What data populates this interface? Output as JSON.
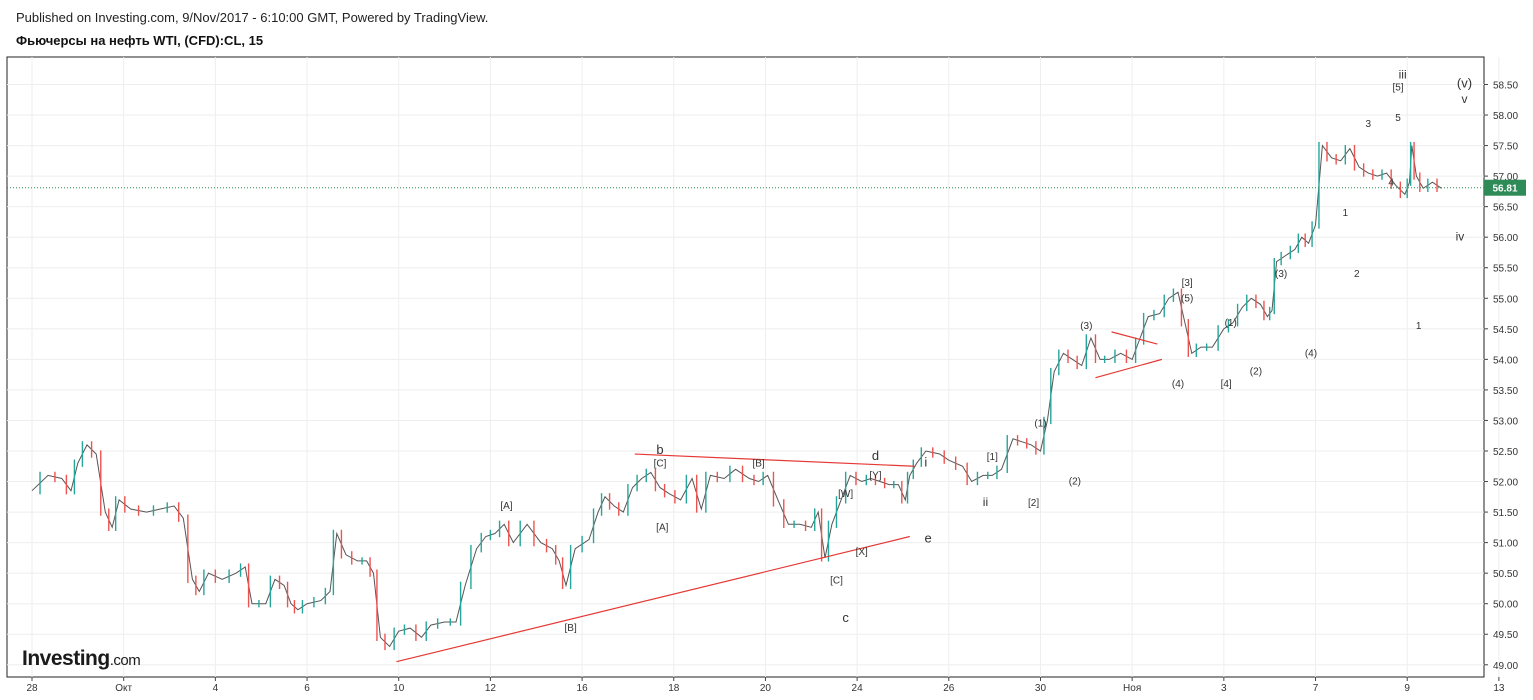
{
  "header": {
    "published": "Published on Investing.com, 9/Nov/2017 - 6:10:00 GMT, Powered by TradingView.",
    "title": "Фьючерсы на нефть WTI, (CFD):CL, 15"
  },
  "logo": {
    "brand": "Investing",
    "domain": ".com"
  },
  "chart_data": {
    "type": "line",
    "title": "Фьючерсы на нефть WTI, (CFD):CL, 15",
    "x_ticks": [
      "28",
      "Окт",
      "4",
      "6",
      "10",
      "12",
      "16",
      "18",
      "20",
      "24",
      "26",
      "30",
      "Ноя",
      "3",
      "7",
      "9",
      "13"
    ],
    "y_ticks": [
      "58.50",
      "58.00",
      "57.50",
      "57.00",
      "56.50",
      "56.00",
      "55.50",
      "55.00",
      "54.50",
      "54.00",
      "53.50",
      "53.00",
      "52.50",
      "52.00",
      "51.50",
      "51.00",
      "50.50",
      "50.00",
      "49.50",
      "49.00"
    ],
    "ylim": [
      48.8,
      58.95
    ],
    "last_price": "56.81",
    "grid": true,
    "colors": {
      "up": "#26a69a",
      "down": "#ef5350",
      "trendline": "#e53935",
      "last_price": "#2e8b57"
    },
    "series": [
      {
        "values": [
          [
            0.0,
            51.85
          ],
          [
            0.7,
            52.1
          ],
          [
            1.3,
            52.05
          ],
          [
            1.7,
            51.85
          ],
          [
            2.0,
            52.3
          ],
          [
            2.4,
            52.6
          ],
          [
            2.8,
            52.45
          ],
          [
            3.2,
            51.5
          ],
          [
            3.5,
            51.25
          ],
          [
            3.8,
            51.7
          ],
          [
            4.3,
            51.55
          ],
          [
            5.0,
            51.5
          ],
          [
            5.6,
            51.55
          ],
          [
            6.2,
            51.6
          ],
          [
            6.6,
            51.4
          ],
          [
            7.0,
            50.4
          ],
          [
            7.3,
            50.2
          ],
          [
            7.7,
            50.5
          ],
          [
            8.3,
            50.4
          ],
          [
            8.9,
            50.5
          ],
          [
            9.3,
            50.6
          ],
          [
            9.6,
            50.0
          ],
          [
            10.2,
            50.0
          ],
          [
            10.6,
            50.4
          ],
          [
            11.0,
            50.3
          ],
          [
            11.3,
            50.0
          ],
          [
            11.6,
            49.9
          ],
          [
            12.0,
            50.0
          ],
          [
            12.6,
            50.05
          ],
          [
            13.0,
            50.2
          ],
          [
            13.3,
            51.15
          ],
          [
            13.7,
            50.8
          ],
          [
            14.2,
            50.7
          ],
          [
            14.6,
            50.7
          ],
          [
            14.9,
            50.5
          ],
          [
            15.2,
            49.45
          ],
          [
            15.6,
            49.3
          ],
          [
            16.0,
            49.55
          ],
          [
            16.5,
            49.6
          ],
          [
            17.0,
            49.45
          ],
          [
            17.4,
            49.65
          ],
          [
            18.0,
            49.7
          ],
          [
            18.5,
            49.7
          ],
          [
            18.9,
            50.3
          ],
          [
            19.4,
            50.9
          ],
          [
            19.8,
            51.1
          ],
          [
            20.2,
            51.15
          ],
          [
            20.6,
            51.3
          ],
          [
            21.0,
            51.0
          ],
          [
            21.6,
            51.3
          ],
          [
            22.2,
            51.0
          ],
          [
            22.7,
            50.9
          ],
          [
            23.0,
            50.7
          ],
          [
            23.3,
            50.3
          ],
          [
            23.7,
            50.9
          ],
          [
            24.3,
            51.05
          ],
          [
            24.7,
            51.5
          ],
          [
            25.0,
            51.75
          ],
          [
            25.4,
            51.6
          ],
          [
            25.8,
            51.5
          ],
          [
            26.2,
            51.9
          ],
          [
            26.6,
            52.05
          ],
          [
            27.0,
            52.15
          ],
          [
            27.4,
            51.9
          ],
          [
            27.8,
            51.8
          ],
          [
            28.3,
            51.7
          ],
          [
            28.8,
            52.05
          ],
          [
            29.2,
            51.55
          ],
          [
            29.6,
            52.1
          ],
          [
            30.2,
            52.05
          ],
          [
            30.7,
            52.2
          ],
          [
            31.3,
            52.05
          ],
          [
            31.7,
            52.0
          ],
          [
            32.1,
            52.1
          ],
          [
            32.6,
            51.65
          ],
          [
            33.0,
            51.3
          ],
          [
            33.5,
            51.3
          ],
          [
            34.0,
            51.25
          ],
          [
            34.3,
            51.5
          ],
          [
            34.6,
            50.75
          ],
          [
            34.9,
            51.3
          ],
          [
            35.3,
            51.7
          ],
          [
            35.7,
            52.1
          ],
          [
            36.2,
            52.0
          ],
          [
            36.6,
            52.05
          ],
          [
            37.0,
            52.0
          ],
          [
            37.4,
            51.95
          ],
          [
            37.8,
            51.95
          ],
          [
            38.1,
            51.7
          ],
          [
            38.3,
            52.1
          ],
          [
            38.6,
            52.3
          ],
          [
            39.0,
            52.5
          ],
          [
            39.6,
            52.45
          ],
          [
            40.0,
            52.35
          ],
          [
            40.6,
            52.25
          ],
          [
            41.0,
            52.0
          ],
          [
            41.5,
            52.1
          ],
          [
            41.9,
            52.1
          ],
          [
            42.3,
            52.2
          ],
          [
            42.8,
            52.7
          ],
          [
            43.2,
            52.65
          ],
          [
            43.6,
            52.6
          ],
          [
            44.0,
            52.5
          ],
          [
            44.3,
            53.0
          ],
          [
            44.6,
            53.8
          ],
          [
            45.0,
            54.1
          ],
          [
            45.4,
            54.0
          ],
          [
            45.8,
            53.9
          ],
          [
            46.2,
            54.35
          ],
          [
            46.6,
            54.0
          ],
          [
            47.0,
            54.0
          ],
          [
            47.5,
            54.1
          ],
          [
            48.0,
            54.0
          ],
          [
            48.3,
            54.3
          ],
          [
            48.7,
            54.7
          ],
          [
            49.2,
            54.75
          ],
          [
            49.6,
            55.0
          ],
          [
            50.0,
            55.1
          ],
          [
            50.3,
            54.6
          ],
          [
            50.6,
            54.1
          ],
          [
            51.0,
            54.2
          ],
          [
            51.5,
            54.2
          ],
          [
            52.0,
            54.5
          ],
          [
            52.4,
            54.6
          ],
          [
            52.8,
            54.85
          ],
          [
            53.2,
            55.0
          ],
          [
            53.6,
            54.9
          ],
          [
            53.9,
            54.7
          ],
          [
            54.1,
            54.8
          ],
          [
            54.3,
            55.6
          ],
          [
            54.7,
            55.7
          ],
          [
            55.1,
            55.8
          ],
          [
            55.4,
            56.0
          ],
          [
            55.7,
            55.9
          ],
          [
            56.0,
            56.2
          ],
          [
            56.3,
            57.5
          ],
          [
            56.7,
            57.3
          ],
          [
            57.1,
            57.25
          ],
          [
            57.5,
            57.45
          ],
          [
            57.9,
            57.15
          ],
          [
            58.3,
            57.05
          ],
          [
            58.7,
            57.0
          ],
          [
            59.1,
            57.05
          ],
          [
            59.5,
            56.85
          ],
          [
            59.9,
            56.7
          ],
          [
            60.1,
            56.9
          ],
          [
            60.2,
            57.5
          ],
          [
            60.4,
            57.0
          ],
          [
            60.7,
            56.8
          ],
          [
            61.1,
            56.9
          ],
          [
            61.5,
            56.8
          ]
        ]
      }
    ],
    "lines": [
      {
        "from": [
          15.9,
          49.05
        ],
        "to": [
          38.3,
          51.1
        ]
      },
      {
        "from": [
          26.3,
          52.45
        ],
        "to": [
          38.5,
          52.25
        ]
      },
      {
        "from": [
          46.4,
          53.7
        ],
        "to": [
          49.3,
          54.0
        ]
      },
      {
        "from": [
          47.1,
          54.45
        ],
        "to": [
          49.1,
          54.25
        ]
      }
    ],
    "annotations": [
      {
        "text": "b",
        "x": 27.4,
        "y": 52.45,
        "size": 13
      },
      {
        "text": "[C]",
        "x": 27.4,
        "y": 52.25,
        "size": 10
      },
      {
        "text": "[B]",
        "x": 31.7,
        "y": 52.25,
        "size": 10
      },
      {
        "text": "d",
        "x": 36.8,
        "y": 52.35,
        "size": 13
      },
      {
        "text": "[Y]",
        "x": 36.8,
        "y": 52.05,
        "size": 10
      },
      {
        "text": "i",
        "x": 39.0,
        "y": 52.25,
        "size": 13
      },
      {
        "text": "[A]",
        "x": 20.7,
        "y": 51.55,
        "size": 10
      },
      {
        "text": "[A]",
        "x": 27.5,
        "y": 51.2,
        "size": 10
      },
      {
        "text": "[W]",
        "x": 35.5,
        "y": 51.75,
        "size": 10
      },
      {
        "text": "[X]",
        "x": 36.2,
        "y": 50.8,
        "size": 10
      },
      {
        "text": "e",
        "x": 39.1,
        "y": 51.0,
        "size": 13
      },
      {
        "text": "[C]",
        "x": 35.1,
        "y": 50.33,
        "size": 10
      },
      {
        "text": "[B]",
        "x": 23.5,
        "y": 49.55,
        "size": 10
      },
      {
        "text": "c",
        "x": 35.5,
        "y": 49.7,
        "size": 13
      },
      {
        "text": "[1]",
        "x": 41.9,
        "y": 52.35,
        "size": 10
      },
      {
        "text": "ii",
        "x": 41.6,
        "y": 51.6,
        "size": 12
      },
      {
        "text": "[2]",
        "x": 43.7,
        "y": 51.6,
        "size": 10
      },
      {
        "text": "(1)",
        "x": 44.0,
        "y": 52.9,
        "size": 10
      },
      {
        "text": "(2)",
        "x": 45.5,
        "y": 51.95,
        "size": 10
      },
      {
        "text": "(3)",
        "x": 46.0,
        "y": 54.5,
        "size": 10
      },
      {
        "text": "(4)",
        "x": 50.0,
        "y": 53.55,
        "size": 10
      },
      {
        "text": "[3]",
        "x": 50.4,
        "y": 55.2,
        "size": 10
      },
      {
        "text": "(5)",
        "x": 50.4,
        "y": 54.95,
        "size": 10
      },
      {
        "text": "[4]",
        "x": 52.1,
        "y": 53.55,
        "size": 10
      },
      {
        "text": "(1)",
        "x": 52.3,
        "y": 54.55,
        "size": 10
      },
      {
        "text": "(2)",
        "x": 53.4,
        "y": 53.75,
        "size": 10
      },
      {
        "text": "(3)",
        "x": 54.5,
        "y": 55.35,
        "size": 10
      },
      {
        "text": "(4)",
        "x": 55.8,
        "y": 54.05,
        "size": 10
      },
      {
        "text": "1",
        "x": 57.3,
        "y": 56.35,
        "size": 10
      },
      {
        "text": "2",
        "x": 57.8,
        "y": 55.35,
        "size": 10
      },
      {
        "text": "3",
        "x": 58.3,
        "y": 57.8,
        "size": 10
      },
      {
        "text": "4",
        "x": 59.3,
        "y": 56.85,
        "size": 10
      },
      {
        "text": "5",
        "x": 59.6,
        "y": 57.9,
        "size": 10
      },
      {
        "text": "[5]",
        "x": 59.6,
        "y": 58.4,
        "size": 10
      },
      {
        "text": "iii",
        "x": 59.8,
        "y": 58.6,
        "size": 12
      },
      {
        "text": "(v)",
        "x": 62.5,
        "y": 58.45,
        "size": 13
      },
      {
        "text": "v",
        "x": 62.5,
        "y": 58.2,
        "size": 12
      },
      {
        "text": "iv",
        "x": 62.3,
        "y": 55.95,
        "size": 12
      },
      {
        "text": "1",
        "x": 60.5,
        "y": 54.5,
        "size": 10
      }
    ]
  }
}
